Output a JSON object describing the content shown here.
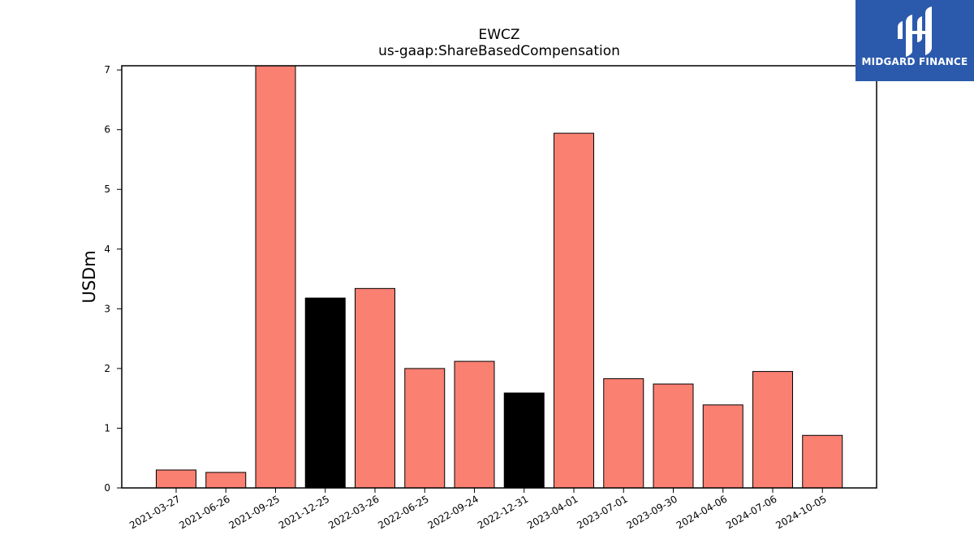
{
  "brand": {
    "name": "MIDGARD FINANCE",
    "background_color": "#2b5aad"
  },
  "chart_data": {
    "type": "bar",
    "title": "EWCZ",
    "subtitle": "us-gaap:ShareBasedCompensation",
    "xlabel": "",
    "ylabel": "USDm",
    "ylim": [
      0,
      7.07
    ],
    "yticks": [
      0,
      1,
      2,
      3,
      4,
      5,
      6,
      7
    ],
    "grid": false,
    "categories": [
      "2021-03-27",
      "2021-06-26",
      "2021-09-25",
      "2021-12-25",
      "2022-03-26",
      "2022-06-25",
      "2022-09-24",
      "2022-12-31",
      "2023-04-01",
      "2023-07-01",
      "2023-09-30",
      "2024-04-06",
      "2024-07-06",
      "2024-10-05"
    ],
    "values": [
      0.3,
      0.26,
      7.07,
      3.18,
      3.34,
      2.0,
      2.12,
      1.59,
      5.94,
      1.83,
      1.74,
      1.39,
      1.95,
      0.88
    ],
    "bar_colors": [
      "#fa8072",
      "#fa8072",
      "#fa8072",
      "#000000",
      "#fa8072",
      "#fa8072",
      "#fa8072",
      "#000000",
      "#fa8072",
      "#fa8072",
      "#fa8072",
      "#fa8072",
      "#fa8072",
      "#fa8072"
    ]
  }
}
